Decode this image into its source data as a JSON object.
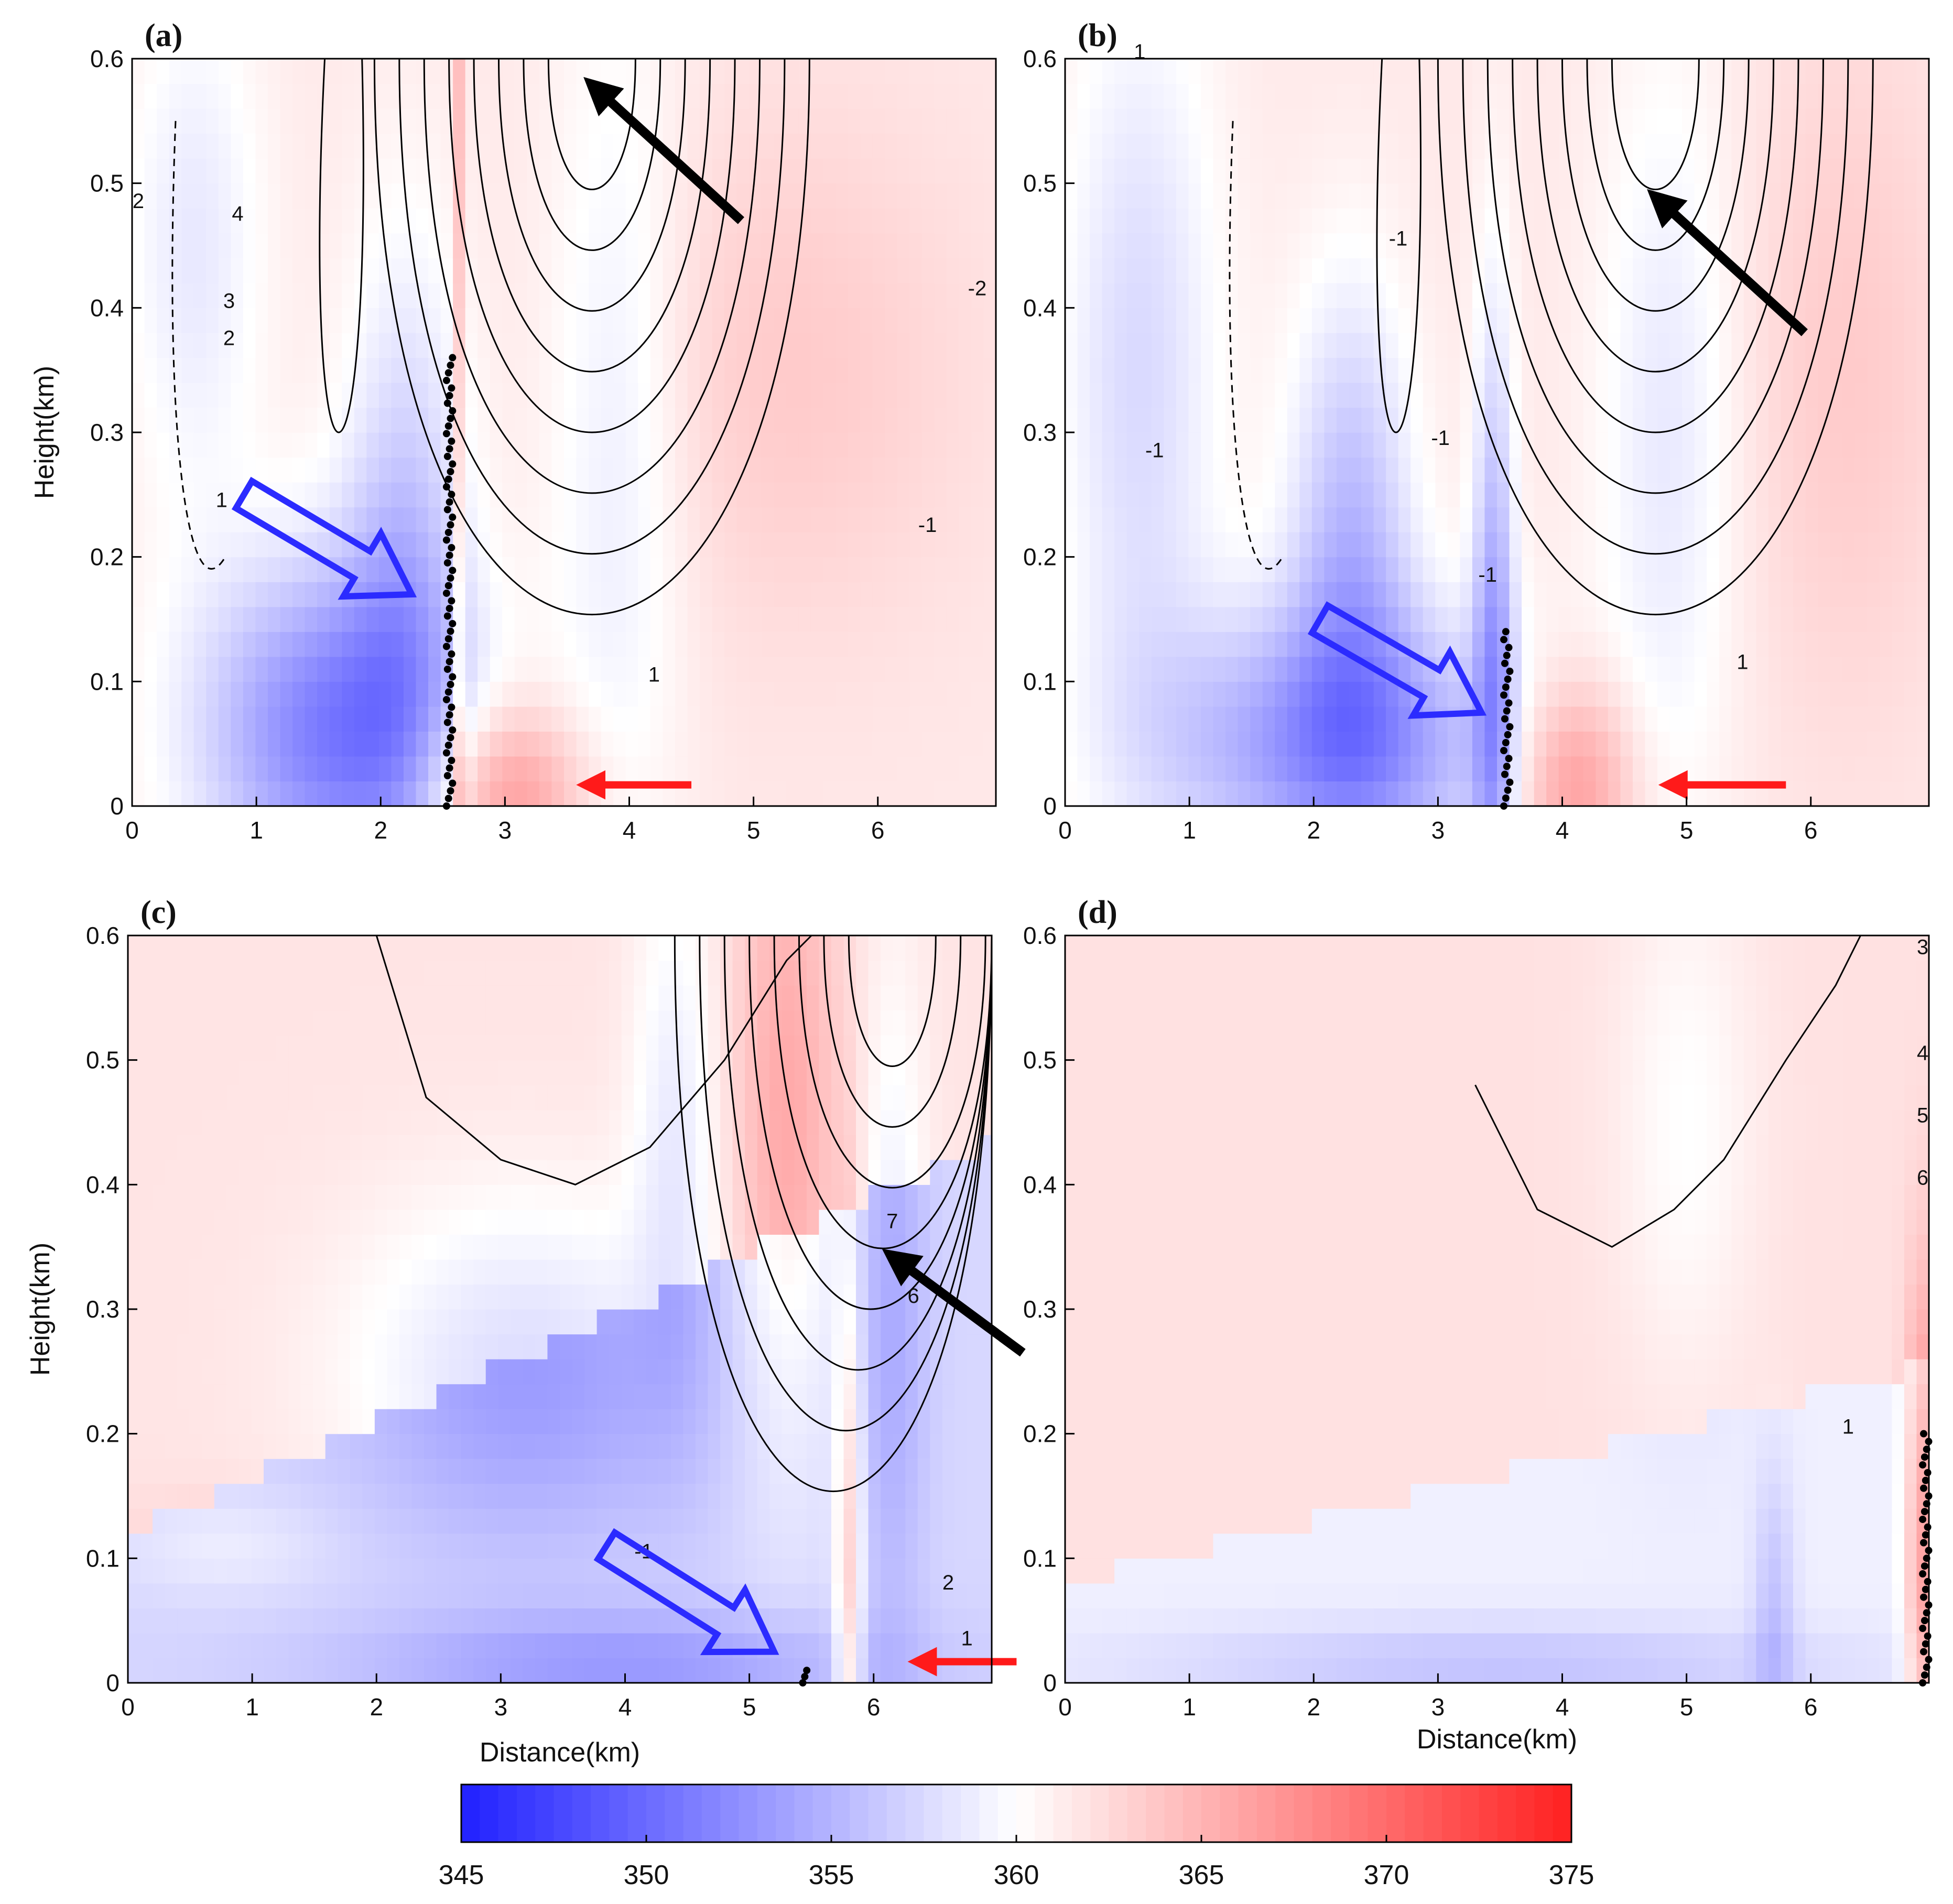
{
  "chart_data": {
    "type": "heatmap",
    "colorbar": {
      "min": 345,
      "max": 375,
      "ticks": [
        "345",
        "350",
        "355",
        "360",
        "365",
        "370",
        "375"
      ],
      "colors": {
        "low": "#2020ff",
        "mid": "#ffffff",
        "high": "#ff2020"
      }
    },
    "panels": [
      {
        "id": "a",
        "label": "(a)",
        "xlabel": "",
        "ylabel": "Height(km)",
        "xlim": [
          0,
          6.95
        ],
        "ylim": [
          0,
          0.6
        ],
        "xticks": [
          "0",
          "1",
          "2",
          "3",
          "4",
          "5",
          "6"
        ],
        "yticks": [
          "0",
          "0.1",
          "0.2",
          "0.3",
          "0.4",
          "0.5",
          "0.6"
        ],
        "contour_labels": [
          {
            "text": "1",
            "x": 0.72,
            "y": 0.24
          },
          {
            "text": "1",
            "x": 4.2,
            "y": 0.1
          },
          {
            "text": "2",
            "x": 0.05,
            "y": 0.48
          },
          {
            "text": "4",
            "x": 0.85,
            "y": 0.47
          },
          {
            "text": "3",
            "x": 0.78,
            "y": 0.4
          },
          {
            "text": "2",
            "x": 0.78,
            "y": 0.37
          },
          {
            "text": "-2",
            "x": 6.8,
            "y": 0.41
          },
          {
            "text": "-1",
            "x": 6.4,
            "y": 0.22
          }
        ],
        "front_x": 2.55,
        "front_top": 0.36,
        "black_arrow": {
          "from": [
            4.9,
            0.47
          ],
          "to": [
            3.8,
            0.57
          ]
        },
        "red_arrow": {
          "from": [
            4.5,
            0.017
          ],
          "to": [
            3.75,
            0.017
          ]
        },
        "blue_arrow": {
          "from": [
            0.9,
            0.25
          ],
          "to": [
            2.25,
            0.17
          ]
        }
      },
      {
        "id": "b",
        "label": "(b)",
        "xlabel": "",
        "ylabel": "",
        "xlim": [
          0,
          6.95
        ],
        "ylim": [
          0,
          0.6
        ],
        "xticks": [
          "0",
          "1",
          "2",
          "3",
          "4",
          "5",
          "6"
        ],
        "yticks": [
          "0",
          "0.1",
          "0.2",
          "0.3",
          "0.4",
          "0.5",
          "0.6"
        ],
        "contour_labels": [
          {
            "text": "1",
            "x": 0.6,
            "y": 0.6
          },
          {
            "text": "-1",
            "x": 2.68,
            "y": 0.45
          },
          {
            "text": "-1",
            "x": 0.72,
            "y": 0.28
          },
          {
            "text": "-1",
            "x": 3.02,
            "y": 0.29
          },
          {
            "text": "1",
            "x": 5.45,
            "y": 0.11
          },
          {
            "text": "-1",
            "x": 3.4,
            "y": 0.18
          }
        ],
        "front_x": 3.55,
        "front_top": 0.14,
        "black_arrow": {
          "from": [
            5.95,
            0.38
          ],
          "to": [
            4.85,
            0.48
          ]
        },
        "red_arrow": {
          "from": [
            5.8,
            0.017
          ],
          "to": [
            4.95,
            0.017
          ]
        },
        "blue_arrow": {
          "from": [
            2.05,
            0.15
          ],
          "to": [
            3.35,
            0.075
          ]
        }
      },
      {
        "id": "c",
        "label": "(c)",
        "xlabel": "Distance(km)",
        "ylabel": "Height(km)",
        "xlim": [
          0,
          6.95
        ],
        "ylim": [
          0,
          0.6
        ],
        "xticks": [
          "0",
          "1",
          "2",
          "3",
          "4",
          "5",
          "6"
        ],
        "yticks": [
          "0",
          "0.1",
          "0.2",
          "0.3",
          "0.4",
          "0.5",
          "0.6"
        ],
        "contour_labels": [
          {
            "text": "7",
            "x": 6.15,
            "y": 0.365
          },
          {
            "text": "6",
            "x": 6.32,
            "y": 0.305
          },
          {
            "text": "2",
            "x": 6.6,
            "y": 0.075
          },
          {
            "text": "1",
            "x": 6.75,
            "y": 0.03
          },
          {
            "text": "-1",
            "x": 4.15,
            "y": 0.1
          }
        ],
        "front_x": 5.45,
        "front_top": 0.01,
        "black_arrow": {
          "from": [
            7.2,
            0.265
          ],
          "to": [
            6.25,
            0.335
          ]
        },
        "red_arrow": {
          "from": [
            7.15,
            0.017
          ],
          "to": [
            6.45,
            0.017
          ]
        },
        "blue_arrow": {
          "from": [
            3.85,
            0.11
          ],
          "to": [
            5.2,
            0.025
          ]
        }
      },
      {
        "id": "d",
        "label": "(d)",
        "xlabel": "Distance(km)",
        "ylabel": "",
        "xlim": [
          0,
          6.95
        ],
        "ylim": [
          0,
          0.6
        ],
        "xticks": [
          "0",
          "1",
          "2",
          "3",
          "4",
          "5",
          "6"
        ],
        "yticks": [
          "0",
          "0.1",
          "0.2",
          "0.3",
          "0.4",
          "0.5",
          "0.6"
        ],
        "contour_labels": [
          {
            "text": "1",
            "x": 6.3,
            "y": 0.2
          },
          {
            "text": "3",
            "x": 6.9,
            "y": 0.585
          },
          {
            "text": "4",
            "x": 6.9,
            "y": 0.5
          },
          {
            "text": "5",
            "x": 6.9,
            "y": 0.45
          },
          {
            "text": "6",
            "x": 6.9,
            "y": 0.4
          }
        ],
        "front_x": 6.92,
        "front_top": 0.2,
        "black_arrow": null,
        "red_arrow": null,
        "blue_arrow": null
      }
    ]
  }
}
